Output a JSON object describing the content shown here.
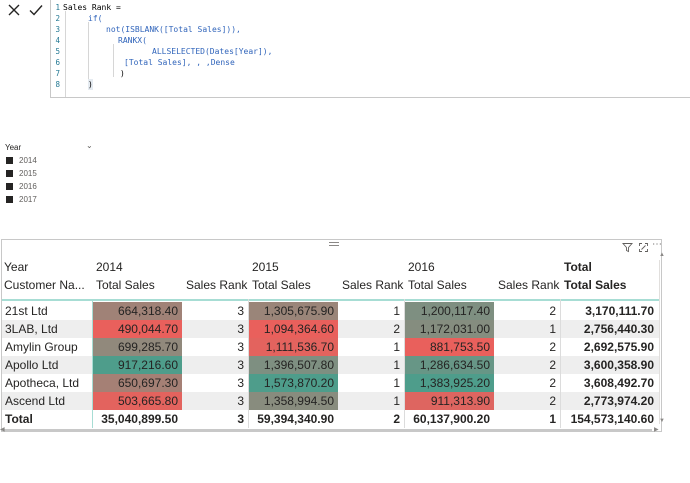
{
  "formula_bar": {
    "cancel_icon": "close-icon",
    "commit_icon": "check-icon",
    "lines": [
      {
        "num": "1",
        "text": "Sales Rank ="
      },
      {
        "num": "2",
        "text": "if("
      },
      {
        "num": "3",
        "text": "not(ISBLANK([Total Sales])),"
      },
      {
        "num": "4",
        "text": "RANKX("
      },
      {
        "num": "5",
        "text": "ALLSELECTED(Dates[Year]),"
      },
      {
        "num": "6",
        "text": "[Total Sales], , ,Dense"
      },
      {
        "num": "7",
        "text": ")"
      },
      {
        "num": "8",
        "text": ")"
      }
    ]
  },
  "slicer": {
    "title": "Year",
    "items": [
      "2014",
      "2015",
      "2016",
      "2017"
    ]
  },
  "visual": {
    "header_icons": [
      "drag-handle-icon",
      "filter-icon",
      "focus-mode-icon",
      "more-options-icon"
    ],
    "row_header_top": "Year",
    "row_header_bottom": "Customer Na...",
    "years": [
      "2014",
      "2015",
      "2016"
    ],
    "total_label": "Total",
    "measure_total_sales": "Total Sales",
    "measure_sales_rank": "Sales Rank",
    "rows": [
      {
        "name": "21st Ltd",
        "y2014": {
          "sales": "664,318.40",
          "rank": "3"
        },
        "y2015": {
          "sales": "1,305,675.90",
          "rank": "1"
        },
        "y2016": {
          "sales": "1,200,117.40",
          "rank": "2"
        },
        "total": "3,170,111.70"
      },
      {
        "name": "3LAB, Ltd",
        "y2014": {
          "sales": "490,044.70",
          "rank": "3"
        },
        "y2015": {
          "sales": "1,094,364.60",
          "rank": "2"
        },
        "y2016": {
          "sales": "1,172,031.00",
          "rank": "1"
        },
        "total": "2,756,440.30"
      },
      {
        "name": "Amylin Group",
        "y2014": {
          "sales": "699,285.70",
          "rank": "3"
        },
        "y2015": {
          "sales": "1,111,536.70",
          "rank": "1"
        },
        "y2016": {
          "sales": "881,753.50",
          "rank": "2"
        },
        "total": "2,692,575.90"
      },
      {
        "name": "Apollo Ltd",
        "y2014": {
          "sales": "917,216.60",
          "rank": "3"
        },
        "y2015": {
          "sales": "1,396,507.80",
          "rank": "1"
        },
        "y2016": {
          "sales": "1,286,634.50",
          "rank": "2"
        },
        "total": "3,600,358.90"
      },
      {
        "name": "Apotheca, Ltd",
        "y2014": {
          "sales": "650,697.30",
          "rank": "3"
        },
        "y2015": {
          "sales": "1,573,870.20",
          "rank": "1"
        },
        "y2016": {
          "sales": "1,383,925.20",
          "rank": "2"
        },
        "total": "3,608,492.70"
      },
      {
        "name": "Ascend Ltd",
        "y2014": {
          "sales": "503,665.80",
          "rank": "3"
        },
        "y2015": {
          "sales": "1,358,994.50",
          "rank": "1"
        },
        "y2016": {
          "sales": "911,313.90",
          "rank": "2"
        },
        "total": "2,773,974.20"
      }
    ],
    "totals_row": {
      "name": "Total",
      "y2014": {
        "sales": "35,040,899.50",
        "rank": "3"
      },
      "y2015": {
        "sales": "59,394,340.90",
        "rank": "2"
      },
      "y2016": {
        "sales": "60,137,900.20",
        "rank": "1"
      },
      "total": "154,573,140.60"
    },
    "colors": {
      "high": "#4e9d8b",
      "mid": "#8f8a7d",
      "low": "#e9605c",
      "row_alt": "#eeeeee",
      "accent_line": "#a7ddd4"
    }
  }
}
